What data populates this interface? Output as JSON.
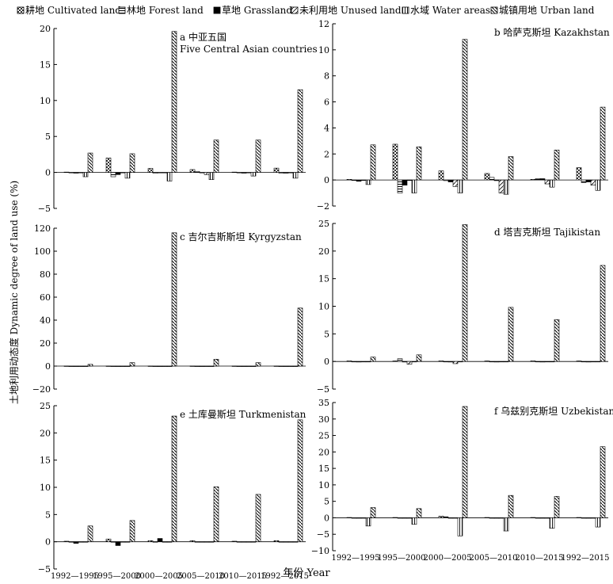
{
  "legend": [
    {
      "key": "cultivated",
      "label": "耕地 Cultivated land",
      "pattern": "pat-cultivated"
    },
    {
      "key": "forest",
      "label": "林地 Forest land",
      "pattern": "pat-forest"
    },
    {
      "key": "grassland",
      "label": "草地 Grassland",
      "pattern": "pat-grass"
    },
    {
      "key": "unused",
      "label": "未利用地 Unused land",
      "pattern": "pat-unused"
    },
    {
      "key": "water",
      "label": "水域 Water areas",
      "pattern": "pat-water"
    },
    {
      "key": "urban",
      "label": "城镇用地 Urban land",
      "pattern": "pat-urban"
    }
  ],
  "ylabel": "土地利用动态度 Dynamic degree of land use (%)",
  "xlabel": "年份 Year",
  "chart_data": [
    {
      "type": "bar",
      "title": "a 中亚五国",
      "title2": "Five Central Asian countries",
      "categories": [
        "1992—1995",
        "1995—2000",
        "2000—2005",
        "2005—2010",
        "2010—2015",
        "1992—2015"
      ],
      "ylim": [
        -5,
        20
      ],
      "yticks": [
        -5,
        0,
        5,
        10,
        15,
        20
      ],
      "series": [
        {
          "name": "耕地 Cultivated land",
          "values": [
            0.05,
            2.0,
            0.55,
            0.4,
            0.05,
            0.6
          ]
        },
        {
          "name": "林地 Forest land",
          "values": [
            0.0,
            -0.6,
            -0.1,
            0.15,
            0.0,
            -0.1
          ]
        },
        {
          "name": "草地 Grassland",
          "values": [
            -0.1,
            -0.3,
            -0.05,
            -0.05,
            -0.1,
            -0.1
          ]
        },
        {
          "name": "未利用地 Unused land",
          "values": [
            0.0,
            0.0,
            0.0,
            -0.3,
            -0.05,
            -0.05
          ]
        },
        {
          "name": "水域 Water areas",
          "values": [
            -0.6,
            -0.8,
            -1.2,
            -1.0,
            -0.5,
            -0.8
          ]
        },
        {
          "name": "城镇用地 Urban land",
          "values": [
            2.7,
            2.6,
            19.6,
            4.5,
            4.5,
            11.5
          ]
        }
      ]
    },
    {
      "type": "bar",
      "title": "b 哈萨克斯坦 Kazakhstan",
      "categories": [
        "1992—1995",
        "1995—2000",
        "2000—2005",
        "2005—2010",
        "2010—2015",
        "1992—2015"
      ],
      "ylim": [
        -2,
        12
      ],
      "yticks": [
        -2,
        0,
        2,
        4,
        6,
        8,
        10,
        12
      ],
      "series": [
        {
          "name": "耕地 Cultivated land",
          "values": [
            0.05,
            2.75,
            0.7,
            0.5,
            0.05,
            0.95
          ]
        },
        {
          "name": "林地 Forest land",
          "values": [
            0.0,
            -1.0,
            -0.05,
            0.2,
            0.1,
            -0.2
          ]
        },
        {
          "name": "草地 Grassland",
          "values": [
            -0.1,
            -0.4,
            -0.15,
            -0.05,
            0.1,
            -0.15
          ]
        },
        {
          "name": "未利用地 Unused land",
          "values": [
            0.0,
            0.0,
            -0.5,
            -1.0,
            -0.3,
            -0.4
          ]
        },
        {
          "name": "水域 Water areas",
          "values": [
            -0.35,
            -1.0,
            -1.0,
            -1.1,
            -0.55,
            -0.8
          ]
        },
        {
          "name": "城镇用地 Urban land",
          "values": [
            2.7,
            2.55,
            10.8,
            1.8,
            2.3,
            5.6
          ]
        }
      ]
    },
    {
      "type": "bar",
      "title": "c 吉尔吉斯斯坦 Kyrgyzstan",
      "categories": [
        "1992—1995",
        "1995—2000",
        "2000—2005",
        "2005—2010",
        "2010—2015",
        "1992—2015"
      ],
      "ylim": [
        -20,
        120
      ],
      "yticks": [
        -20,
        0,
        20,
        40,
        60,
        80,
        100,
        120
      ],
      "series": [
        {
          "name": "耕地 Cultivated land",
          "values": [
            0.1,
            0.1,
            0.1,
            0.1,
            0.1,
            0.1
          ]
        },
        {
          "name": "林地 Forest land",
          "values": [
            0.0,
            0.0,
            0.0,
            0.0,
            0.0,
            0.0
          ]
        },
        {
          "name": "草地 Grassland",
          "values": [
            -0.2,
            -0.3,
            -0.1,
            -0.1,
            -0.1,
            -0.1
          ]
        },
        {
          "name": "未利用地 Unused land",
          "values": [
            0.0,
            0.0,
            0.0,
            0.0,
            0.0,
            0.0
          ]
        },
        {
          "name": "水域 Water areas",
          "values": [
            0.0,
            0.0,
            0.0,
            0.0,
            0.0,
            0.0
          ]
        },
        {
          "name": "城镇用地 Urban land",
          "values": [
            1.5,
            3.0,
            116.0,
            6.0,
            3.0,
            50.5
          ]
        }
      ]
    },
    {
      "type": "bar",
      "title": "d 塔吉克斯坦 Tajikistan",
      "categories": [
        "1992—1995",
        "1995—2000",
        "2000—2005",
        "2005—2010",
        "2010—2015",
        "1992—2015"
      ],
      "ylim": [
        -5,
        25
      ],
      "yticks": [
        -5,
        0,
        5,
        10,
        15,
        20,
        25
      ],
      "series": [
        {
          "name": "耕地 Cultivated land",
          "values": [
            0.1,
            0.1,
            0.1,
            0.1,
            0.1,
            0.1
          ]
        },
        {
          "name": "林地 Forest land",
          "values": [
            0.0,
            0.5,
            0.0,
            0.0,
            0.0,
            0.0
          ]
        },
        {
          "name": "草地 Grassland",
          "values": [
            -0.1,
            -0.1,
            -0.1,
            -0.1,
            -0.1,
            -0.1
          ]
        },
        {
          "name": "未利用地 Unused land",
          "values": [
            0.0,
            -0.5,
            -0.4,
            0.0,
            0.0,
            0.0
          ]
        },
        {
          "name": "水域 Water areas",
          "values": [
            0.0,
            0.0,
            0.0,
            0.0,
            0.0,
            0.0
          ]
        },
        {
          "name": "城镇用地 Urban land",
          "values": [
            0.8,
            1.2,
            24.8,
            9.8,
            7.6,
            17.4
          ]
        }
      ]
    },
    {
      "type": "bar",
      "title": "e 土库曼斯坦 Turkmenistan",
      "categories": [
        "1992—1995",
        "1995—2000",
        "2000—2005",
        "2005—2010",
        "2010—2015",
        "1992—2015"
      ],
      "ylim": [
        -5,
        25
      ],
      "yticks": [
        -5,
        0,
        5,
        10,
        15,
        20,
        25
      ],
      "series": [
        {
          "name": "耕地 Cultivated land",
          "values": [
            0.1,
            0.5,
            0.2,
            0.2,
            0.1,
            0.2
          ]
        },
        {
          "name": "林地 Forest land",
          "values": [
            0.0,
            0.0,
            0.0,
            0.0,
            0.0,
            0.0
          ]
        },
        {
          "name": "草地 Grassland",
          "values": [
            -0.3,
            -0.7,
            0.6,
            0.0,
            0.0,
            0.0
          ]
        },
        {
          "name": "未利用地 Unused land",
          "values": [
            0.0,
            0.0,
            0.0,
            0.0,
            0.0,
            0.0
          ]
        },
        {
          "name": "水域 Water areas",
          "values": [
            0.0,
            0.0,
            0.0,
            0.0,
            0.0,
            0.0
          ]
        },
        {
          "name": "城镇用地 Urban land",
          "values": [
            2.9,
            3.9,
            23.1,
            10.1,
            8.7,
            22.4
          ]
        }
      ]
    },
    {
      "type": "bar",
      "title": "f 乌兹别克斯坦 Uzbekistan",
      "categories": [
        "1992—1995",
        "1995—2000",
        "2000—2005",
        "2005—2010",
        "2010—2015",
        "1992—2015"
      ],
      "ylim": [
        -10,
        35
      ],
      "yticks": [
        -10,
        -5,
        0,
        5,
        10,
        15,
        20,
        25,
        30,
        35
      ],
      "series": [
        {
          "name": "耕地 Cultivated land",
          "values": [
            0.1,
            0.1,
            0.5,
            0.1,
            0.1,
            0.1
          ]
        },
        {
          "name": "林地 Forest land",
          "values": [
            0.0,
            0.0,
            0.3,
            0.0,
            0.0,
            0.0
          ]
        },
        {
          "name": "草地 Grassland",
          "values": [
            0.0,
            0.0,
            0.0,
            0.0,
            0.0,
            0.0
          ]
        },
        {
          "name": "未利用地 Unused land",
          "values": [
            0.0,
            0.0,
            0.0,
            0.0,
            0.0,
            0.0
          ]
        },
        {
          "name": "水域 Water areas",
          "values": [
            -2.5,
            -2.0,
            -5.5,
            -4.0,
            -3.2,
            -2.8
          ]
        },
        {
          "name": "城镇用地 Urban land",
          "values": [
            3.1,
            2.8,
            33.8,
            6.8,
            6.5,
            21.6
          ]
        }
      ]
    }
  ]
}
